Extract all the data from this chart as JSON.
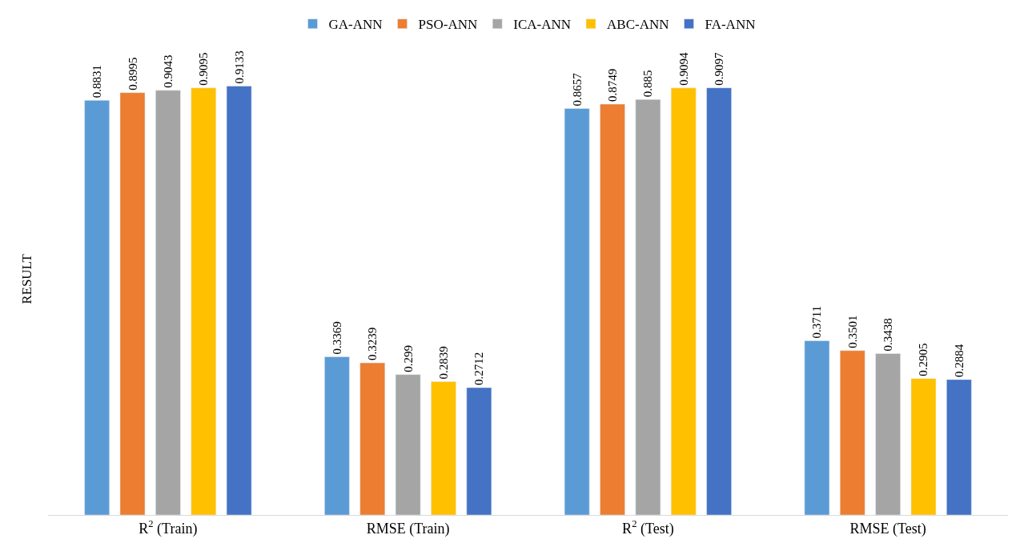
{
  "chart_data": {
    "type": "bar",
    "ylabel": "RESULT",
    "categories": [
      "R$^{2}$ (Train)",
      "RMSE (Train)",
      "R$^{2}$ (Test)",
      "RMSE (Test)"
    ],
    "series": [
      {
        "name": "GA-ANN",
        "color": "#5b9bd5",
        "values": [
          0.8831,
          0.3369,
          0.8657,
          0.3711
        ]
      },
      {
        "name": "PSO-ANN",
        "color": "#ed7d31",
        "values": [
          0.8995,
          0.3239,
          0.8749,
          0.3501
        ]
      },
      {
        "name": "ICA-ANN",
        "color": "#a5a5a5",
        "values": [
          0.9043,
          0.299,
          0.885,
          0.3438
        ]
      },
      {
        "name": "ABC-ANN",
        "color": "#ffc000",
        "values": [
          0.9095,
          0.2839,
          0.9094,
          0.2905
        ]
      },
      {
        "name": "FA-ANN",
        "color": "#4472c4",
        "values": [
          0.9133,
          0.2712,
          0.9097,
          0.2884
        ]
      }
    ],
    "data_labels": true,
    "legend": "top"
  }
}
